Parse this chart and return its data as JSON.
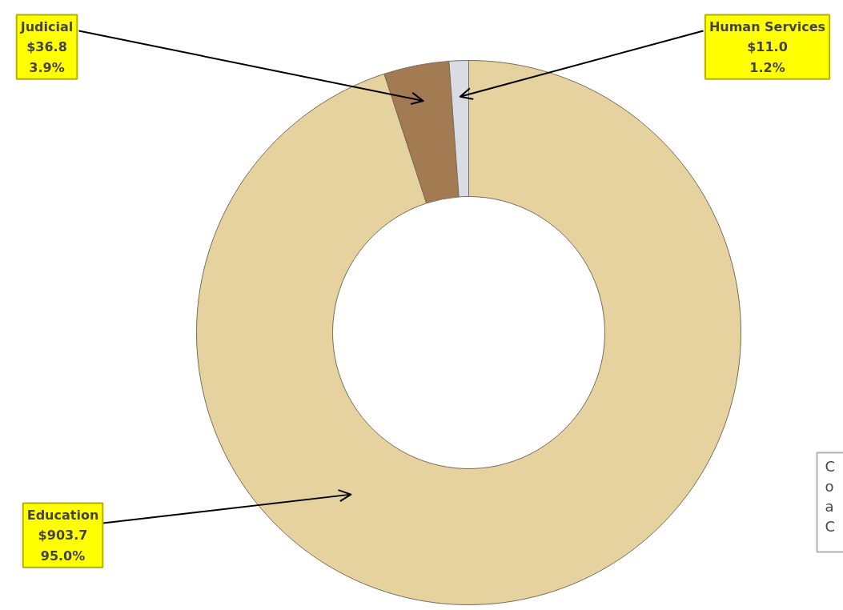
{
  "chart_data": {
    "type": "donut",
    "categories": [
      "Education",
      "Judicial",
      "Human Services"
    ],
    "values": [
      903.7,
      36.8,
      11.0
    ],
    "value_labels": [
      "$903.7\n95.0%",
      "$36.8\n3.9%",
      "$11.0\n1.2%"
    ],
    "colors": [
      "#e6d29e",
      "#a27b52",
      "#d9dce3"
    ],
    "legend": false,
    "annotations": [
      "C\no\na\nC"
    ]
  }
}
